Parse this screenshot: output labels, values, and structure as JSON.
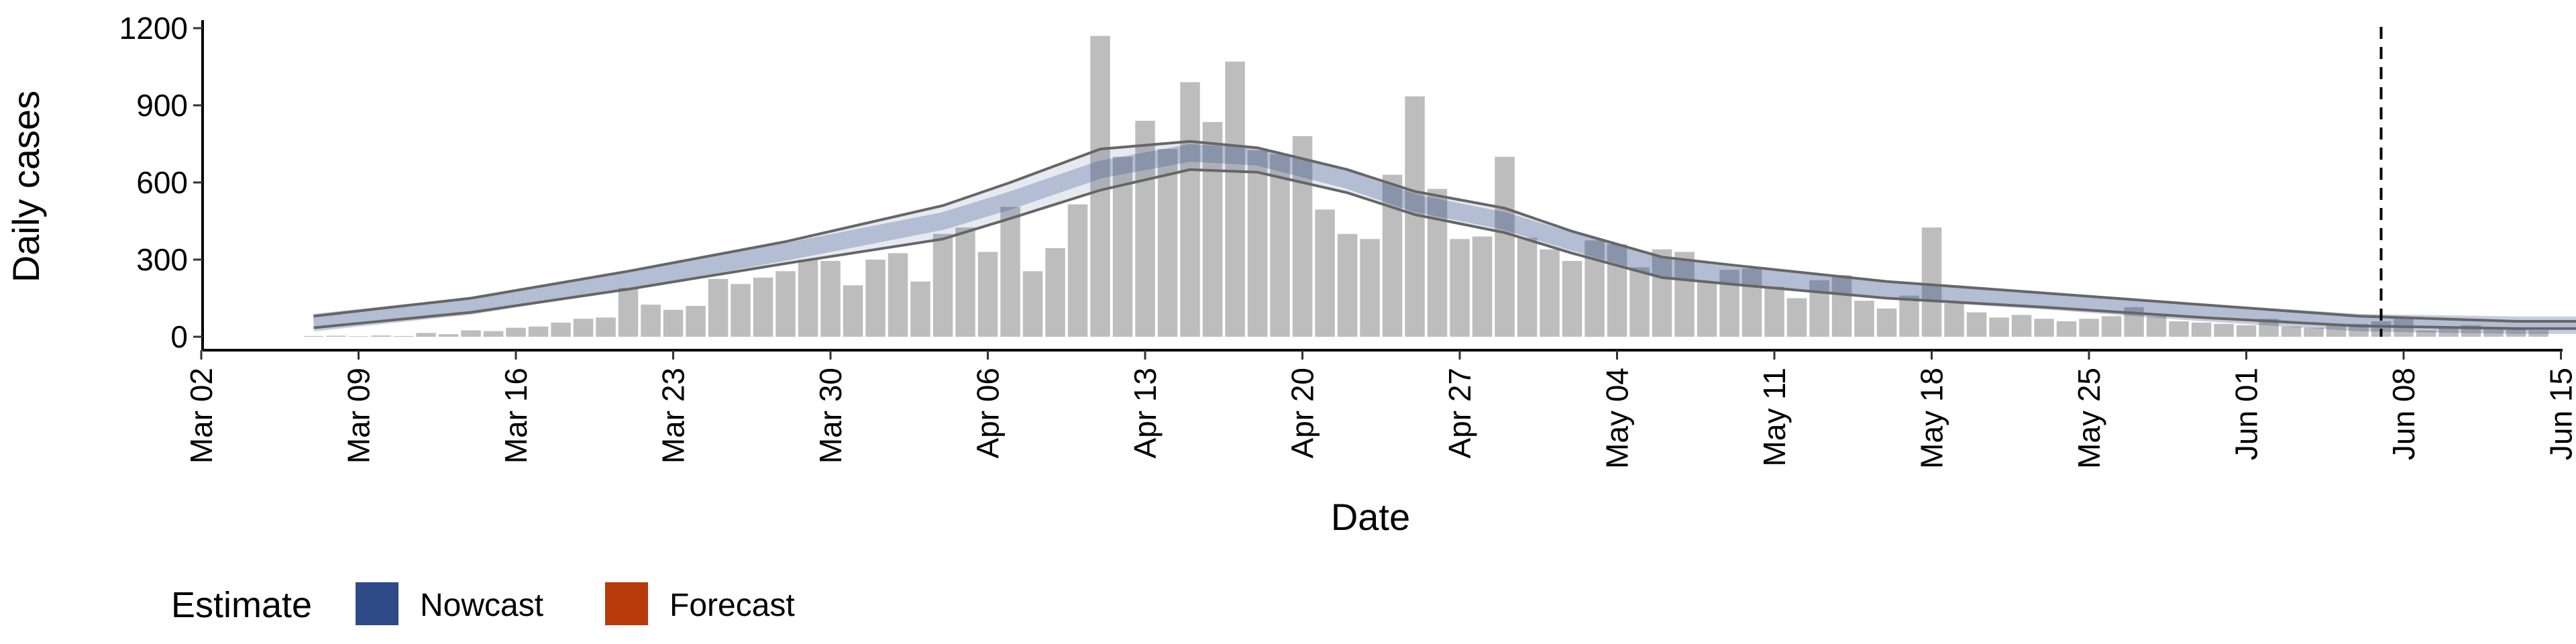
{
  "chart_data": {
    "type": "bar",
    "title": "",
    "xlabel": "Date",
    "ylabel": "Daily cases",
    "ylim": [
      0,
      1200
    ],
    "xlim": [
      "2020-03-02",
      "2020-06-15"
    ],
    "yticks": [
      0,
      300,
      600,
      900,
      1200
    ],
    "xticks": [
      "Mar 02",
      "Mar 09",
      "Mar 16",
      "Mar 23",
      "Mar 30",
      "Apr 06",
      "Apr 13",
      "Apr 20",
      "Apr 27",
      "May 04",
      "May 11",
      "May 18",
      "May 25",
      "Jun 01",
      "Jun 08",
      "Jun 15"
    ],
    "grid": false,
    "legend_position": "bottom-left",
    "legend": {
      "title": "Estimate",
      "items": [
        {
          "label": "Nowcast",
          "color": "#2e4a87"
        },
        {
          "label": "Forecast",
          "color": "#b83a0a"
        }
      ]
    },
    "bar_color": "#bdbdbd",
    "vline_date": "2020-06-07",
    "bars": {
      "start_date": "2020-03-07",
      "values": [
        3,
        4,
        2,
        5,
        3,
        15,
        10,
        25,
        22,
        35,
        40,
        55,
        70,
        75,
        190,
        125,
        105,
        120,
        225,
        205,
        230,
        255,
        300,
        295,
        200,
        300,
        325,
        215,
        400,
        425,
        330,
        505,
        255,
        345,
        515,
        1170,
        700,
        840,
        730,
        990,
        835,
        1070,
        725,
        710,
        780,
        495,
        400,
        380,
        630,
        935,
        575,
        380,
        390,
        700,
        385,
        340,
        295,
        375,
        360,
        270,
        340,
        330,
        215,
        260,
        265,
        195,
        150,
        220,
        240,
        140,
        110,
        160,
        425,
        130,
        95,
        75,
        85,
        70,
        60,
        70,
        80,
        115,
        80,
        60,
        55,
        50,
        45,
        70,
        40,
        35,
        45,
        50,
        60,
        70,
        25,
        40,
        45,
        35,
        30,
        25
      ]
    },
    "series": [
      {
        "name": "Nowcast",
        "color": "#2e4a87",
        "dates_start": "2020-03-07",
        "dates_end": "2020-05-28",
        "median": [
          [
            0,
            55
          ],
          [
            7,
            120
          ],
          [
            14,
            220
          ],
          [
            21,
            330
          ],
          [
            28,
            450
          ],
          [
            31,
            530
          ],
          [
            35,
            650
          ],
          [
            39,
            715
          ],
          [
            42,
            700
          ],
          [
            46,
            610
          ],
          [
            49,
            520
          ],
          [
            53,
            450
          ],
          [
            56,
            370
          ],
          [
            60,
            270
          ],
          [
            63,
            240
          ],
          [
            70,
            180
          ],
          [
            77,
            140
          ],
          [
            84,
            95
          ],
          [
            91,
            55
          ],
          [
            98,
            45
          ],
          [
            101,
            45
          ]
        ],
        "lower": [
          [
            0,
            35
          ],
          [
            7,
            95
          ],
          [
            14,
            185
          ],
          [
            21,
            285
          ],
          [
            28,
            380
          ],
          [
            31,
            460
          ],
          [
            35,
            570
          ],
          [
            39,
            650
          ],
          [
            42,
            640
          ],
          [
            46,
            560
          ],
          [
            49,
            475
          ],
          [
            53,
            405
          ],
          [
            56,
            325
          ],
          [
            60,
            230
          ],
          [
            63,
            205
          ],
          [
            70,
            150
          ],
          [
            77,
            115
          ],
          [
            84,
            75
          ],
          [
            91,
            42
          ],
          [
            98,
            32
          ],
          [
            101,
            32
          ]
        ],
        "upper": [
          [
            0,
            80
          ],
          [
            7,
            150
          ],
          [
            14,
            255
          ],
          [
            21,
            370
          ],
          [
            28,
            510
          ],
          [
            31,
            600
          ],
          [
            35,
            730
          ],
          [
            39,
            760
          ],
          [
            42,
            735
          ],
          [
            46,
            650
          ],
          [
            49,
            565
          ],
          [
            53,
            500
          ],
          [
            56,
            410
          ],
          [
            60,
            310
          ],
          [
            63,
            280
          ],
          [
            70,
            215
          ],
          [
            77,
            170
          ],
          [
            84,
            125
          ],
          [
            91,
            80
          ],
          [
            98,
            60
          ],
          [
            101,
            60
          ]
        ]
      },
      {
        "name": "Forecast",
        "color": "#b83a0a",
        "dates_start": "2020-05-28",
        "dates_end": "2020-06-11",
        "median": [
          [
            101,
            30
          ],
          [
            108,
            28
          ],
          [
            115,
            27
          ]
        ],
        "lower": [
          [
            101,
            15
          ],
          [
            108,
            12
          ],
          [
            115,
            10
          ]
        ],
        "upper": [
          [
            101,
            45
          ],
          [
            108,
            45
          ],
          [
            115,
            45
          ]
        ]
      }
    ]
  }
}
